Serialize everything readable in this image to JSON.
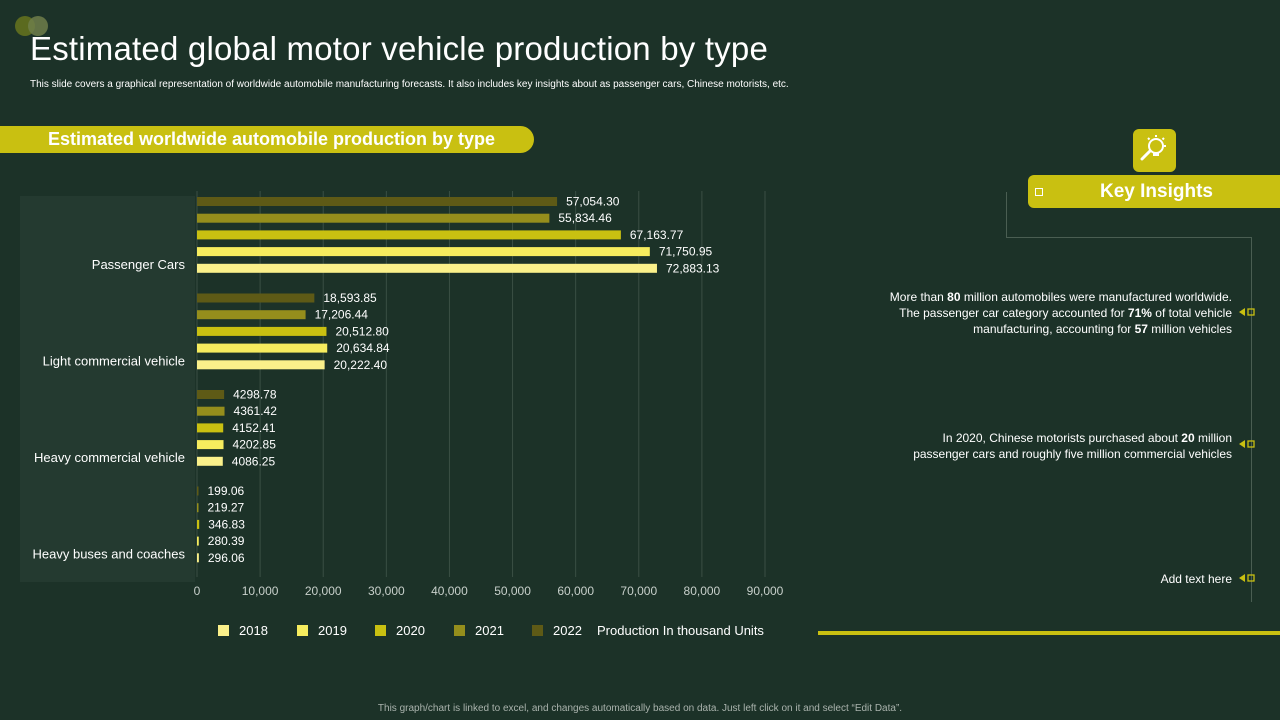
{
  "slide": {
    "title": "Estimated global motor vehicle production by type",
    "subtitle": "This slide covers a graphical representation of worldwide automobile manufacturing forecasts. It also includes key insights about as passenger cars, Chinese motorists, etc.",
    "section_label": "Estimated worldwide automobile production by type",
    "footnote": "This graph/chart is linked to excel, and changes automatically based on data. Just left click on it and select “Edit Data”."
  },
  "colors": {
    "background": "#1c3228",
    "accent": "#c9c011",
    "series": [
      "#faf08a",
      "#f6ec5e",
      "#c9c011",
      "#958e1c",
      "#5e5a16"
    ]
  },
  "chart_data": {
    "type": "bar",
    "orientation": "horizontal",
    "categories": [
      "Passenger Cars",
      "Light commercial vehicle",
      "Heavy commercial vehicle",
      "Heavy buses and coaches"
    ],
    "series": [
      {
        "name": "2018",
        "values": [
          72883.13,
          20222.4,
          4086.25,
          296.06
        ],
        "labels": [
          "72,883.13",
          "20,222.40",
          "4086.25",
          "296.06"
        ]
      },
      {
        "name": "2019",
        "values": [
          71750.95,
          20634.84,
          4202.85,
          280.39
        ],
        "labels": [
          "71,750.95",
          "20,634.84",
          "4202.85",
          "280.39"
        ]
      },
      {
        "name": "2020",
        "values": [
          67163.77,
          20512.8,
          4152.41,
          346.83
        ],
        "labels": [
          "67,163.77",
          "20,512.80",
          "4152.41",
          "346.83"
        ]
      },
      {
        "name": "2021",
        "values": [
          55834.46,
          17206.44,
          4361.42,
          219.27
        ],
        "labels": [
          "55,834.46",
          "17,206.44",
          "4361.42",
          "219.27"
        ]
      },
      {
        "name": "2022",
        "values": [
          57054.3,
          18593.85,
          4298.78,
          199.06
        ],
        "labels": [
          "57,054.30",
          "18,593.85",
          "4298.78",
          "199.06"
        ]
      }
    ],
    "xlim": [
      0,
      90000
    ],
    "xticks": [
      "0",
      "10,000",
      "20,000",
      "30,000",
      "40,000",
      "50,000",
      "60,000",
      "70,000",
      "80,000",
      "90,000"
    ],
    "xlabel": "Production In thousand Units",
    "legend": [
      "2018",
      "2019",
      "2020",
      "2021",
      "2022"
    ],
    "legend_position": "bottom",
    "grid": true
  },
  "key_insights": {
    "title": "Key Insights",
    "items": [
      {
        "l1a": "More than ",
        "l1b": "80",
        "l1c": " million automobiles were manufactured worldwide.",
        "l2a": "The passenger car category accounted for ",
        "l2b": "71%",
        "l2c": " of total vehicle",
        "l3a": "manufacturing, accounting for ",
        "l3b": "57",
        "l3c": " million vehicles"
      },
      {
        "l1a": "In 2020, Chinese motorists purchased about ",
        "l1b": "20",
        "l1c": " million",
        "l2": "passenger cars and roughly five million commercial vehicles"
      },
      {
        "text": "Add text here"
      }
    ]
  }
}
